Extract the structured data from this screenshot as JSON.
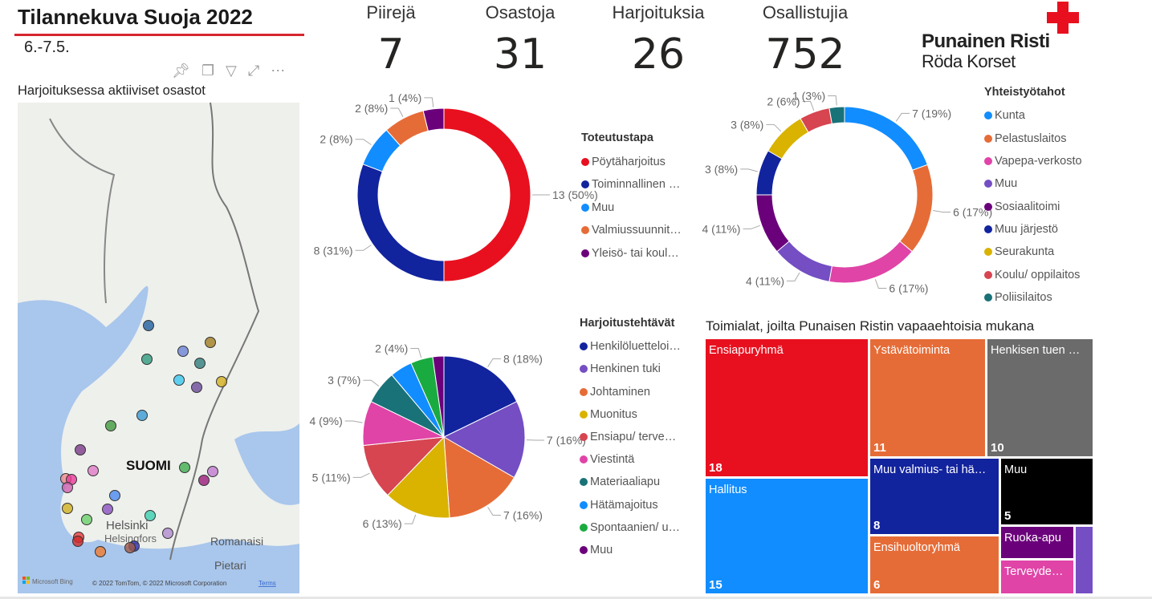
{
  "header": {
    "title": "Tilannekuva Suoja 2022",
    "date": "6.-7.5.",
    "accent": "#d7262f"
  },
  "visual_icons": [
    "pin-icon",
    "copy-icon",
    "filter-icon",
    "focus-mode-icon",
    "more-options-icon"
  ],
  "map": {
    "title": "Harjoituksessa aktiiviset osastot",
    "labels": {
      "country": "SUOMI",
      "city1": "Helsinki",
      "city1b": "Helsingfors",
      "city2": "Romanaisi",
      "city3": "Pietari"
    },
    "attribution": "© 2022 TomTom, © 2022 Microsoft Corporation",
    "terms": "Terms",
    "provider": "Microsoft Bing"
  },
  "kpis": [
    {
      "label": "Piirejä",
      "value": "7"
    },
    {
      "label": "Osastoja",
      "value": "31"
    },
    {
      "label": "Harjoituksia",
      "value": "26"
    },
    {
      "label": "Osallistujia",
      "value": "752"
    }
  ],
  "logo": {
    "line1": "Punainen Risti",
    "line2": "Röda Korset",
    "color": "#e8101f"
  },
  "chart_data": [
    {
      "type": "pie",
      "variant": "donut",
      "legend_title": "Toteutustapa",
      "legend_placement": "right",
      "categories": [
        "Pöytäharjoitus",
        "Toiminnallinen …",
        "Muu",
        "Valmiussuunnit…",
        "Yleisö- tai koul…"
      ],
      "values": [
        13,
        8,
        2,
        2,
        1
      ],
      "labels": [
        "13 (50%)",
        "8 (31%)",
        "2 (8%)",
        "2 (8%)",
        "1 (4%)"
      ],
      "colors": [
        "#e8101f",
        "#12239e",
        "#118dff",
        "#e66c37",
        "#6b007b"
      ]
    },
    {
      "type": "pie",
      "variant": "donut",
      "legend_title": "Yhteistyötahot",
      "legend_placement": "right",
      "categories": [
        "Kunta",
        "Pelastuslaitos",
        "Vapepa-verkosto",
        "Muu",
        "Sosiaalitoimi",
        "Muu järjestö",
        "Seurakunta",
        "Koulu/ oppilaitos",
        "Poliisilaitos"
      ],
      "values": [
        7,
        6,
        6,
        4,
        4,
        3,
        3,
        2,
        1
      ],
      "labels": [
        "7 (19%)",
        "6 (17%)",
        "6 (17%)",
        "4 (11%)",
        "4 (11%)",
        "3 (8%)",
        "3 (8%)",
        "2 (6%)",
        "1 (3%)"
      ],
      "colors": [
        "#118dff",
        "#e66c37",
        "#e044a7",
        "#744ec2",
        "#6b007b",
        "#12239e",
        "#d9b300",
        "#d64550",
        "#197278"
      ]
    },
    {
      "type": "pie",
      "legend_title": "Harjoitustehtävät",
      "legend_placement": "right",
      "categories": [
        "Henkilöluetteloi…",
        "Henkinen tuki",
        "Johtaminen",
        "Muonitus",
        "Ensiapu/ terve…",
        "Viestintä",
        "Materiaaliapu",
        "Hätämajoitus",
        "Spontaanien/ u…",
        "Muu"
      ],
      "values": [
        8,
        7,
        7,
        6,
        5,
        4,
        3,
        2,
        2,
        1
      ],
      "labels": [
        "8 (18%)",
        "7 (16%)",
        "7 (16%)",
        "6 (13%)",
        "5 (11%)",
        "4 (9%)",
        "3 (7%)",
        "",
        "2 (4%)",
        ""
      ],
      "colors": [
        "#12239e",
        "#744ec2",
        "#e66c37",
        "#d9b300",
        "#d64550",
        "#e044a7",
        "#197278",
        "#118dff",
        "#1aab40",
        "#6b007b"
      ]
    },
    {
      "type": "treemap",
      "title": "Toimialat, joilta Punaisen Ristin vapaaehtoisia mukana",
      "categories": [
        "Ensiapuryhmä",
        "Hallitus",
        "Ystävätoiminta",
        "Henkisen tuen …",
        "Muu valmius- tai hä…",
        "Ensihuoltoryhmä",
        "Muu",
        "Ruoka-apu",
        "Terveyde…",
        ""
      ],
      "values": [
        18,
        15,
        11,
        10,
        8,
        6,
        5,
        null,
        null,
        null
      ],
      "colors": [
        "#e8101f",
        "#118dff",
        "#e66c37",
        "#6b6b6b",
        "#12239e",
        "#e66c37",
        "#000000",
        "#6b007b",
        "#e044a7",
        "#744ec2"
      ]
    }
  ]
}
